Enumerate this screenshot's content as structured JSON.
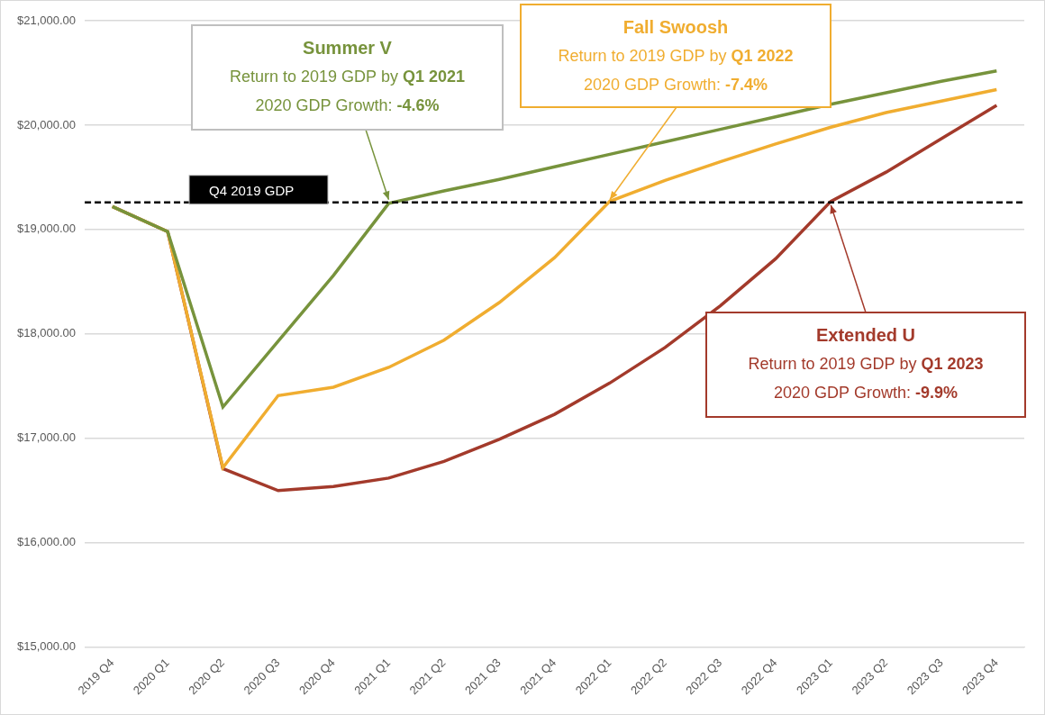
{
  "chart_data": {
    "type": "line",
    "categories": [
      "2019 Q4",
      "2020 Q1",
      "2020 Q2",
      "2020 Q3",
      "2020 Q4",
      "2021 Q1",
      "2021 Q2",
      "2021 Q3",
      "2021 Q4",
      "2022 Q1",
      "2022 Q2",
      "2022 Q3",
      "2022 Q4",
      "2023 Q1",
      "2023 Q2",
      "2023 Q3",
      "2023 Q4"
    ],
    "ylim": [
      15000,
      21000
    ],
    "yticks": [
      {
        "value": 15000,
        "label": "$15,000.00"
      },
      {
        "value": 16000,
        "label": "$16,000.00"
      },
      {
        "value": 17000,
        "label": "$17,000.00"
      },
      {
        "value": 18000,
        "label": "$18,000.00"
      },
      {
        "value": 19000,
        "label": "$19,000.00"
      },
      {
        "value": 20000,
        "label": "$20,000.00"
      },
      {
        "value": 21000,
        "label": "$21,000.00"
      }
    ],
    "grid": true,
    "series": [
      {
        "name": "Summer V",
        "color": "#77933c",
        "values": [
          19220,
          18980,
          17300,
          17930,
          18560,
          19250,
          19370,
          19480,
          19600,
          19720,
          19840,
          19960,
          20080,
          20200,
          20310,
          20420,
          20520
        ]
      },
      {
        "name": "Fall Swoosh",
        "color": "#f0ad30",
        "values": [
          19220,
          18980,
          16720,
          17410,
          17490,
          17680,
          17940,
          18300,
          18730,
          19270,
          19470,
          19650,
          19820,
          19980,
          20120,
          20230,
          20340
        ]
      },
      {
        "name": "Extended U",
        "color": "#a33a2b",
        "values": [
          19220,
          18980,
          16710,
          16500,
          16540,
          16620,
          16780,
          16990,
          17230,
          17530,
          17870,
          18270,
          18720,
          19270,
          19550,
          19870,
          20190
        ]
      }
    ],
    "reference_line": {
      "value": 19260,
      "label": "Q4 2019 GDP",
      "line_style": "dashed"
    },
    "annotations": [
      {
        "title": "Summer V",
        "points_to": "2021 Q1",
        "lines": [
          [
            "Return to 2019 GDP by ",
            "Q1 2021"
          ],
          [
            "2020 GDP Growth: ",
            "-4.6%"
          ]
        ]
      },
      {
        "title": "Fall Swoosh",
        "points_to": "2022 Q1",
        "lines": [
          [
            "Return to 2019 GDP by ",
            "Q1 2022"
          ],
          [
            "2020 GDP Growth: ",
            "-7.4%"
          ]
        ]
      },
      {
        "title": "Extended U",
        "points_to": "2023 Q1",
        "lines": [
          [
            "Return to 2019 GDP by ",
            "Q1 2023"
          ],
          [
            "2020 GDP Growth: ",
            "-9.9%"
          ]
        ]
      }
    ]
  }
}
